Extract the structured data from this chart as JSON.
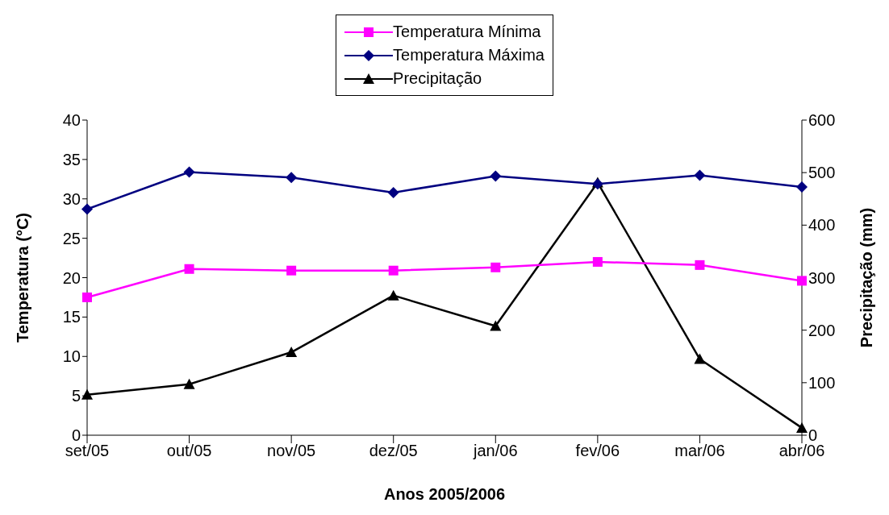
{
  "chart_data": {
    "type": "line",
    "xlabel": "Anos 2005/2006",
    "ylabel": "Temperatura (°C)",
    "y2label": "Precipitação (mm)",
    "categories": [
      "set/05",
      "out/05",
      "nov/05",
      "dez/05",
      "jan/06",
      "fev/06",
      "mar/06",
      "abr/06"
    ],
    "series": [
      {
        "name": "Temperatura Mínima",
        "color": "#ff00ff",
        "marker": "square",
        "values": [
          17.5,
          21.1,
          20.9,
          20.9,
          21.3,
          22.0,
          21.6,
          19.6
        ]
      },
      {
        "name": "Temperatura Máxima",
        "color": "#000080",
        "marker": "diamond",
        "values": [
          28.7,
          33.4,
          32.7,
          30.8,
          32.9,
          31.9,
          33.0,
          31.5
        ]
      },
      {
        "name": "Precipitação",
        "color": "#000000",
        "marker": "triangle",
        "axis": "y2",
        "values": [
          77,
          97,
          158,
          266,
          208,
          481,
          145,
          14
        ]
      }
    ],
    "ylim": [
      0,
      40
    ],
    "yticks": [
      0,
      5,
      10,
      15,
      20,
      25,
      30,
      35,
      40
    ],
    "y2lim": [
      0,
      600
    ],
    "y2ticks": [
      0,
      100,
      200,
      300,
      400,
      500,
      600
    ],
    "grid": false,
    "legend": "top",
    "line_style": "solid"
  }
}
